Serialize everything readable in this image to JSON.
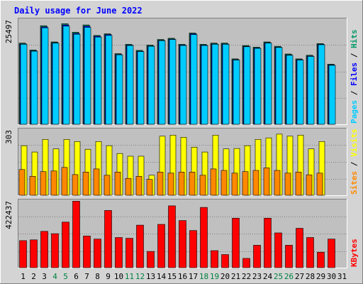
{
  "chart_data": {
    "type": "bar",
    "title": "Daily usage for June 2022",
    "categories": [
      "1",
      "2",
      "3",
      "4",
      "5",
      "6",
      "7",
      "8",
      "9",
      "10",
      "11",
      "12",
      "13",
      "14",
      "15",
      "16",
      "17",
      "18",
      "19",
      "20",
      "21",
      "22",
      "23",
      "24",
      "25",
      "26",
      "27",
      "28",
      "29",
      "30",
      "31"
    ],
    "weekend_days": [
      "4",
      "5",
      "11",
      "12",
      "18",
      "19",
      "25",
      "26"
    ],
    "grid": true,
    "colors": {
      "hits": "#009966",
      "files": "#0000ff",
      "pages": "#00ccff",
      "visits": "#ffff00",
      "sites": "#ff8800",
      "kbytes": "#ff0000",
      "title": "#0000ff",
      "weekend_label": "#008040",
      "panel_bg": "#c0c0c0",
      "frame_bg": "#d4d4d4"
    },
    "panels": [
      {
        "id": "hits_files_pages",
        "max_label": "25497",
        "ylim": [
          0,
          25497
        ],
        "legend": [
          {
            "name": "Pages",
            "color": "#00ccff"
          },
          {
            "name": "Files",
            "color": "#0000ff"
          },
          {
            "name": "Hits",
            "color": "#009966"
          }
        ],
        "series": [
          {
            "name": "Hits",
            "color": "#009966",
            "values": [
              20100,
              18400,
              24400,
              20400,
              24900,
              22800,
              24600,
              22000,
              22400,
              17500,
              19800,
              18300,
              19600,
              21000,
              21300,
              19800,
              22600,
              19800,
              20100,
              20100,
              16200,
              19500,
              19100,
              20400,
              19300,
              17400,
              16200,
              17100,
              20000,
              14900,
              0
            ]
          },
          {
            "name": "Files",
            "color": "#0000ff",
            "values": [
              19900,
              18200,
              24100,
              20200,
              24600,
              22500,
              24300,
              21800,
              22200,
              17300,
              19600,
              18100,
              19400,
              20800,
              21100,
              19600,
              22400,
              19600,
              19900,
              19900,
              16000,
              19300,
              18900,
              20200,
              19100,
              17200,
              16000,
              16900,
              19800,
              14700,
              0
            ]
          },
          {
            "name": "Pages",
            "color": "#00ccff",
            "values": [
              19800,
              18100,
              23900,
              20100,
              24300,
              22300,
              24000,
              21600,
              22000,
              17200,
              19500,
              18000,
              19300,
              20700,
              21000,
              19500,
              22200,
              19500,
              19800,
              19800,
              15900,
              19200,
              18800,
              20100,
              19000,
              17100,
              15900,
              16800,
              19700,
              14600,
              0
            ]
          }
        ]
      },
      {
        "id": "visits_sites",
        "max_label": "303",
        "ylim": [
          0,
          303
        ],
        "legend": [
          {
            "name": "Sites",
            "color": "#ff8800"
          },
          {
            "name": "Visits",
            "color": "#ffff00"
          }
        ],
        "series": [
          {
            "name": "Visits",
            "color": "#ffff00",
            "values": [
              235,
              205,
              265,
              220,
              265,
              255,
              218,
              255,
              235,
              198,
              185,
              185,
              95,
              280,
              285,
              275,
              228,
              205,
              285,
              220,
              222,
              235,
              265,
              272,
              290,
              280,
              285,
              220,
              255,
              0,
              0
            ]
          },
          {
            "name": "Sites",
            "color": "#ff8800",
            "values": [
              122,
              90,
              112,
              115,
              132,
              98,
              110,
              125,
              95,
              110,
              80,
              90,
              75,
              110,
              105,
              110,
              110,
              95,
              125,
              118,
              105,
              112,
              118,
              130,
              118,
              105,
              110,
              97,
              105,
              0,
              0
            ]
          }
        ]
      },
      {
        "id": "kbytes",
        "max_label": "422437",
        "ylim": [
          0,
          422437
        ],
        "legend": [
          {
            "name": "KBytes",
            "color": "#ff0000"
          }
        ],
        "series": [
          {
            "name": "KBytes",
            "color": "#ff0000",
            "values": [
              175000,
              180000,
              235000,
              220000,
              295000,
              430000,
              205000,
              185000,
              370000,
              195000,
              190000,
              275000,
              105000,
              280000,
              400000,
              305000,
              240000,
              390000,
              110000,
              85000,
              320000,
              60000,
              145000,
              320000,
              225000,
              145000,
              255000,
              195000,
              100000,
              185000,
              0
            ]
          }
        ]
      }
    ]
  }
}
